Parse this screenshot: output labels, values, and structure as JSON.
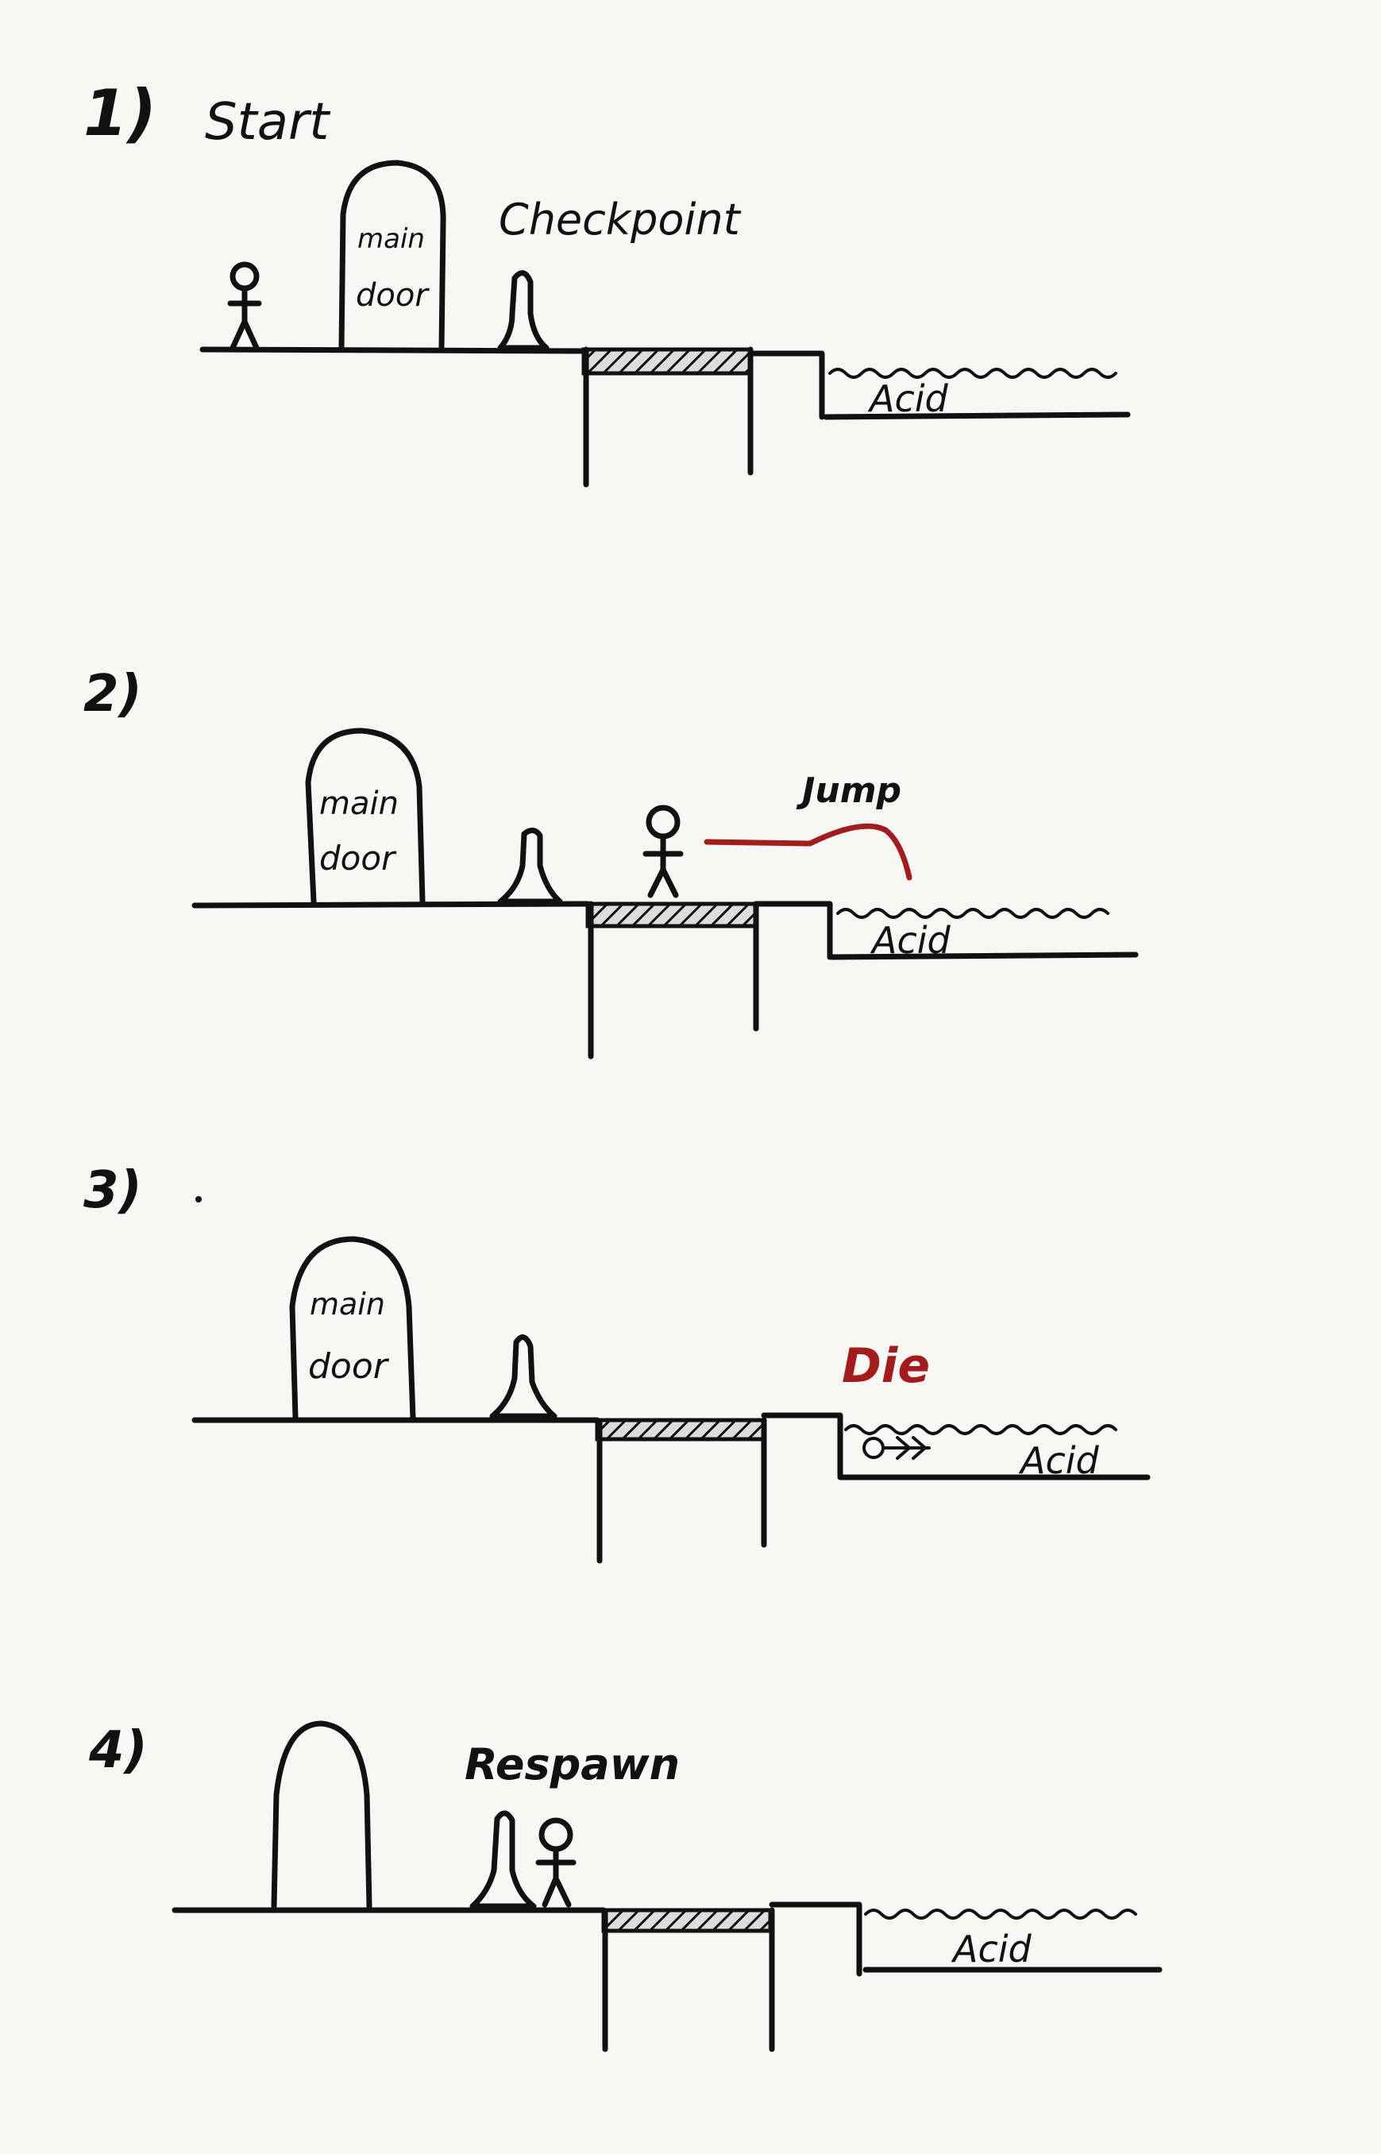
{
  "panels": [
    {
      "number": "1)",
      "title": "Start",
      "door": {
        "line1": "main",
        "line2": "door"
      },
      "checkpoint_label": "Checkpoint",
      "acid_label": "Acid"
    },
    {
      "number": "2)",
      "door": {
        "line1": "main",
        "line2": "door"
      },
      "action_label": "Jump",
      "acid_label": "Acid"
    },
    {
      "number": "3)",
      "door": {
        "line1": "main",
        "line2": "door"
      },
      "action_label": "Die",
      "acid_label": "Acid"
    },
    {
      "number": "4)",
      "action_label": "Respawn",
      "acid_label": "Acid"
    }
  ],
  "colors": {
    "ink": "#111111",
    "accent": "#a51a1a",
    "paper": "#f7f7f5"
  }
}
